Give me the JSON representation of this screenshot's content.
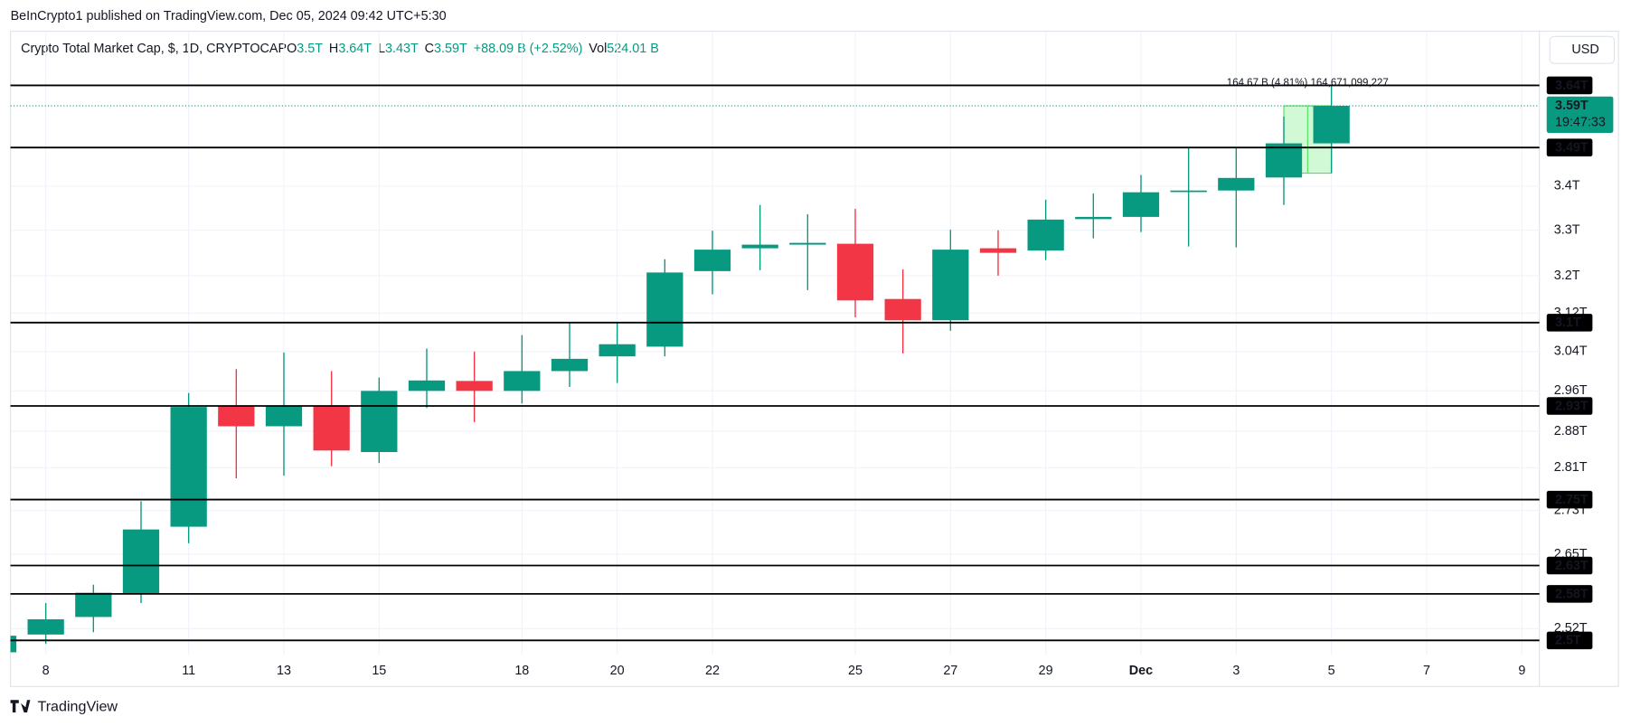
{
  "header": {
    "publisher": "BeInCrypto1 published on TradingView.com, Dec 05, 2024 09:42 UTC+5:30",
    "currency_button": "USD",
    "footer_brand": "TradingView"
  },
  "chart_data": {
    "type": "candlestick",
    "title": "Crypto Total Market Cap, $, 1D, CRYPTOCAP",
    "legend": [
      {
        "label": "O",
        "value": "3.5T"
      },
      {
        "label": "H",
        "value": "3.64T"
      },
      {
        "label": "L",
        "value": "3.43T"
      },
      {
        "label": "C",
        "value": "3.59T"
      }
    ],
    "change": "+88.09 B (+2.52%)",
    "volume": {
      "label": "Vol",
      "value": "524.01 B"
    },
    "categories": [
      null,
      "8",
      null,
      null,
      "11",
      null,
      "13",
      null,
      "15",
      null,
      null,
      "18",
      null,
      "20",
      null,
      "22",
      null,
      null,
      "25",
      null,
      "27",
      null,
      "29",
      null,
      "Dec",
      null,
      "3",
      null,
      "5",
      null,
      "7",
      null,
      "9"
    ],
    "open": [
      2.48,
      2.51,
      2.54,
      2.58,
      2.7,
      2.93,
      2.89,
      2.93,
      2.84,
      2.96,
      2.98,
      2.96,
      3.0,
      3.03,
      3.05,
      3.21,
      3.26,
      3.268,
      3.27,
      3.15,
      3.105,
      3.26,
      3.255,
      3.325,
      3.33,
      3.388,
      3.39,
      3.42,
      3.5,
      null,
      null,
      null,
      null
    ],
    "high": [
      2.51,
      2.564,
      2.596,
      2.747,
      2.956,
      3.004,
      3.038,
      3.0,
      2.987,
      3.046,
      3.04,
      3.074,
      3.1,
      3.1,
      3.236,
      3.299,
      3.357,
      3.336,
      3.348,
      3.214,
      3.301,
      3.3,
      3.369,
      3.383,
      3.426,
      3.49,
      3.49,
      3.564,
      3.64,
      null,
      null,
      null,
      null
    ],
    "low": [
      2.478,
      2.494,
      2.514,
      2.564,
      2.67,
      2.79,
      2.795,
      2.813,
      2.819,
      2.926,
      2.898,
      2.935,
      2.968,
      2.976,
      3.03,
      3.16,
      3.212,
      3.169,
      3.111,
      3.036,
      3.083,
      3.2,
      3.234,
      3.282,
      3.296,
      3.264,
      3.262,
      3.357,
      3.43,
      null,
      null,
      null,
      null
    ],
    "close": [
      2.508,
      2.536,
      2.582,
      2.695,
      2.928,
      2.89,
      2.93,
      2.843,
      2.96,
      2.981,
      2.96,
      3.0,
      3.025,
      3.055,
      3.207,
      3.257,
      3.268,
      3.272,
      3.147,
      3.105,
      3.257,
      3.25,
      3.324,
      3.33,
      3.386,
      3.39,
      3.419,
      3.5,
      3.59,
      null,
      null,
      null,
      null
    ],
    "up_color": "#089981",
    "down_color": "#f23645",
    "log_scale": true,
    "ylim": [
      2.475,
      3.776
    ],
    "yticks": [
      {
        "value": 2.52,
        "label": "2.52T"
      },
      {
        "value": 2.65,
        "label": "2.65T"
      },
      {
        "value": 2.73,
        "label": "2.73T"
      },
      {
        "value": 2.81,
        "label": "2.81T"
      },
      {
        "value": 2.88,
        "label": "2.88T"
      },
      {
        "value": 2.96,
        "label": "2.96T"
      },
      {
        "value": 3.04,
        "label": "3.04T"
      },
      {
        "value": 3.12,
        "label": "3.12T"
      },
      {
        "value": 3.2,
        "label": "3.2T"
      },
      {
        "value": 3.3,
        "label": "3.3T"
      },
      {
        "value": 3.4,
        "label": "3.4T"
      }
    ],
    "grid": true,
    "levels": [
      {
        "value": 3.64,
        "label": "3.64T"
      },
      {
        "value": 3.49,
        "label": "3.49T"
      },
      {
        "value": 3.1,
        "label": "3.1T"
      },
      {
        "value": 2.93,
        "label": "2.93T"
      },
      {
        "value": 2.75,
        "label": "2.75T"
      },
      {
        "value": 2.63,
        "label": "2.63T"
      },
      {
        "value": 2.58,
        "label": "2.58T"
      },
      {
        "value": 2.5,
        "label": "2.5T"
      }
    ],
    "last_price": {
      "value": 3.59,
      "label": "3.59T",
      "countdown": "19:47:33"
    },
    "measure": {
      "label": "164.67 B (4.81%) 164,671,099,227",
      "from": 3.43,
      "to": 3.59
    }
  }
}
